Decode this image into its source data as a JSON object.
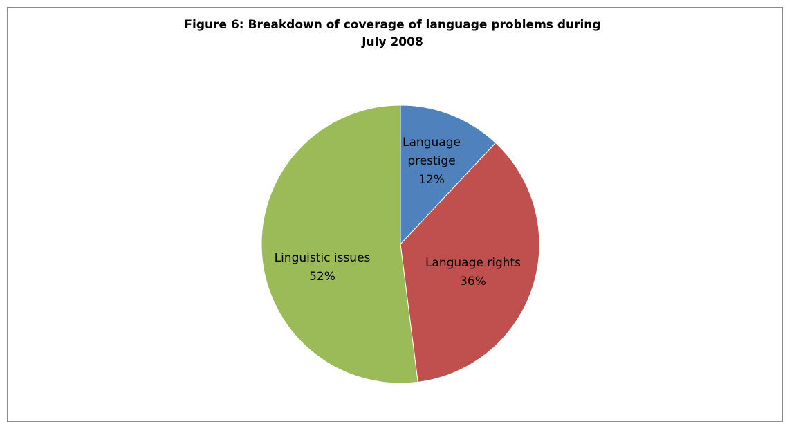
{
  "chart_data": {
    "type": "pie",
    "title": "Figure 6: Breakdown of coverage of language problems during July 2008",
    "title_lines": [
      "Figure 6: Breakdown of coverage of language problems during",
      "July 2008"
    ],
    "categories": [
      "Language prestige",
      "Language rights",
      "Linguistic issues"
    ],
    "values": [
      12,
      36,
      52
    ],
    "value_labels": [
      "12%",
      "36%",
      "52%"
    ],
    "label_lines": [
      [
        "Language",
        "prestige",
        "12%"
      ],
      [
        "Language rights",
        "36%"
      ],
      [
        "Linguistic issues",
        "52%"
      ]
    ],
    "colors": [
      "#4f81bd",
      "#c0504d",
      "#9bbb59"
    ],
    "legend": "none"
  }
}
